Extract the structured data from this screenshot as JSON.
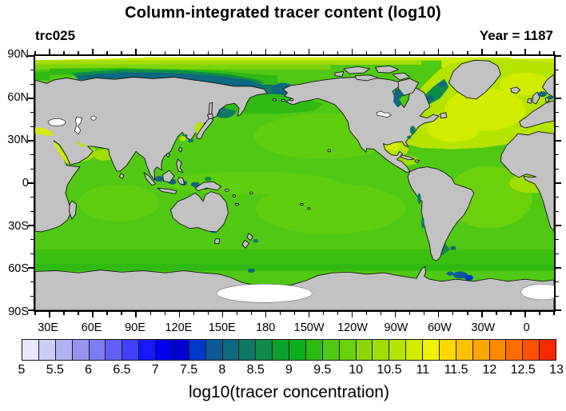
{
  "header": {
    "title": "Column-integrated tracer content (log10)",
    "left_label": "trc025",
    "right_label": "Year = 1187"
  },
  "map_axes": {
    "lat_labels": [
      "90N",
      "60N",
      "30N",
      "0",
      "30S",
      "60S",
      "90S"
    ],
    "lon_labels": [
      "30E",
      "60E",
      "90E",
      "120E",
      "150E",
      "180",
      "150W",
      "120W",
      "90W",
      "60W",
      "30W",
      "0"
    ]
  },
  "colorbar": {
    "title": "log10(tracer concentration)",
    "min": 5,
    "max": 13,
    "step_per_box": 0.25,
    "tick_labels": [
      "5",
      "5.5",
      "6",
      "6.5",
      "7",
      "7.5",
      "8",
      "8.5",
      "9",
      "9.5",
      "10",
      "10.5",
      "11",
      "11.5",
      "12",
      "12.5",
      "13"
    ],
    "colors": [
      "#E8E8FA",
      "#CCCCF6",
      "#B0B0F2",
      "#9494EE",
      "#7C7CF2",
      "#6060F6",
      "#4040FA",
      "#1818FE",
      "#0000EC",
      "#0000D4",
      "#0038C8",
      "#0C5A96",
      "#0E6880",
      "#0F7864",
      "#108C48",
      "#0AA02C",
      "#0CAE1E",
      "#2EBA12",
      "#50C814",
      "#6CD00A",
      "#8AD806",
      "#A0DE00",
      "#B4E400",
      "#D2EC00",
      "#F2F200",
      "#FCD800",
      "#FCC200",
      "#FCA600",
      "#FC8A00",
      "#FC6E00",
      "#FC5200",
      "#F82800"
    ]
  },
  "palette": {
    "land": "#C2C2C2",
    "coast": "#141414",
    "frame": "#000000",
    "ocean": "#50C814",
    "ocean_light": "#5FCE0F",
    "light2": "#6CD00A",
    "grn_yel": "#7ED40A",
    "band": "#3CC010",
    "band_dark": "#2EBA12",
    "ylw": "#B4E400",
    "brt": "#D2EC00",
    "mid": "#A0DE00",
    "top_band": "#CDEC00",
    "teal": "#0E6880",
    "teal2": "#0F7864",
    "tealgreen": "#108C48",
    "steel": "#0C5A96",
    "blue": "#0038C8",
    "nodata": "#FFFFFF"
  },
  "chart_data": {
    "type": "heatmap",
    "title": "Column-integrated tracer content (log10)",
    "variable": "trc025",
    "time_label": "Year = 1187",
    "colorbar_label": "log10(tracer concentration)",
    "value_range": [
      5,
      13
    ],
    "contour_interval": 0.25,
    "n_color_boxes": 32,
    "colorbar_tick_labels": [
      "5",
      "5.5",
      "6",
      "6.5",
      "7",
      "7.5",
      "8",
      "8.5",
      "9",
      "9.5",
      "10",
      "10.5",
      "11",
      "11.5",
      "12",
      "12.5",
      "13"
    ],
    "colorbar_colors": [
      "#E8E8FA",
      "#CCCCF6",
      "#B0B0F2",
      "#9494EE",
      "#7C7CF2",
      "#6060F6",
      "#4040FA",
      "#1818FE",
      "#0000EC",
      "#0000D4",
      "#0038C8",
      "#0C5A96",
      "#0E6880",
      "#0F7864",
      "#108C48",
      "#0AA02C",
      "#0CAE1E",
      "#2EBA12",
      "#50C814",
      "#6CD00A",
      "#8AD806",
      "#A0DE00",
      "#B4E400",
      "#D2EC00",
      "#F2F200",
      "#FCD800",
      "#FCC200",
      "#FCA600",
      "#FC8A00",
      "#FC6E00",
      "#FC5200",
      "#F82800"
    ],
    "projection": "global cylindrical equidistant, Pacific-centered (left edge near 20E)",
    "lat_ticks": [
      "90N",
      "60N",
      "30N",
      "0",
      "30S",
      "60S",
      "90S"
    ],
    "lon_ticks": [
      "30E",
      "60E",
      "90E",
      "120E",
      "150E",
      "180",
      "150W",
      "120W",
      "90W",
      "60W",
      "30W",
      "0"
    ],
    "legend_position": "bottom horizontal labelbar",
    "regions_approx": [
      {
        "region": "open ocean background (Pacific / Indian)",
        "log10_value": 9.6
      },
      {
        "region": "subtropical gyre patches",
        "log10_value": 9.9
      },
      {
        "region": "North Atlantic",
        "log10_value": 10.9
      },
      {
        "region": "surface band near 90N",
        "log10_value": 10.8
      },
      {
        "region": "Siberian shelf / Bering Sea / Sea of Okhotsk",
        "log10_value": 8.0
      },
      {
        "region": "Hudson Bay and Canadian Arctic channels",
        "log10_value": 8.0
      },
      {
        "region": "Indonesian seas",
        "log10_value": 8.2
      },
      {
        "region": "Mediterranean / Gulf of Mexico / Sea of Japan",
        "log10_value": 10.7
      },
      {
        "region": "Southern Ocean band 55-65S",
        "log10_value": 9.3
      },
      {
        "region": "Weddell Sea coastal spots",
        "log10_value": 7.2
      },
      {
        "region": "continents",
        "log10_value": null,
        "note": "land mask, gray"
      },
      {
        "region": "Caspian Sea / Black Sea / Aral / ice shelves",
        "log10_value": null,
        "note": "white, no data"
      }
    ]
  }
}
